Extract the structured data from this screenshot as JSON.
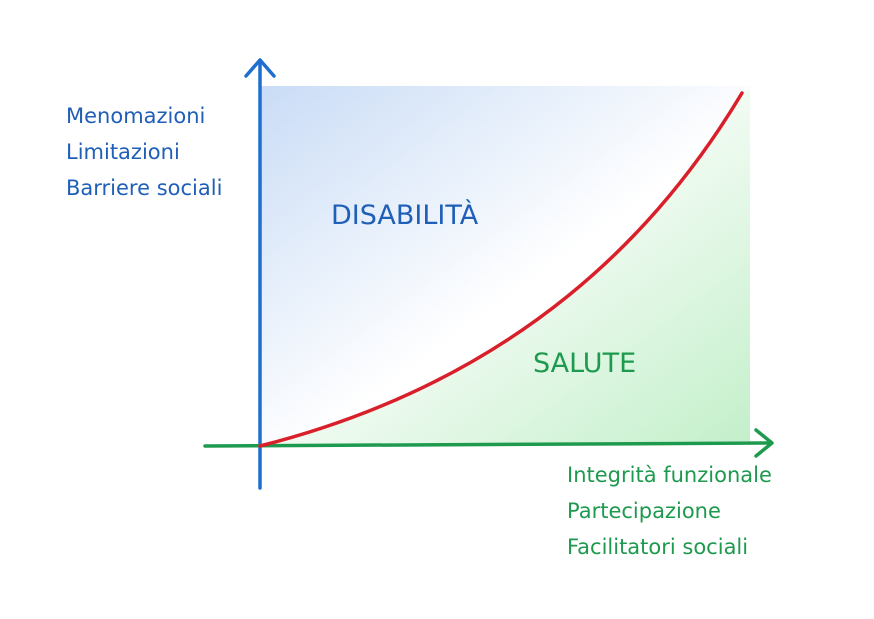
{
  "y_axis": {
    "lines": [
      "Menomazioni",
      "Limitazioni",
      "Barriere sociali"
    ],
    "color": "#1f6fd0"
  },
  "x_axis": {
    "lines": [
      "Integrità funzionale",
      "Partecipazione",
      "Facilitatori sociali"
    ],
    "color": "#1e9a4f"
  },
  "regions": {
    "upper": {
      "label": "DISABILITÀ",
      "color": "#1f5fb8",
      "fill": "#cfe0f7"
    },
    "lower": {
      "label": "SALUTE",
      "color": "#1e9a4f",
      "fill": "#c9f0cf"
    }
  },
  "curve": {
    "color": "#d9202a",
    "shape": "convex, rising left to right"
  }
}
